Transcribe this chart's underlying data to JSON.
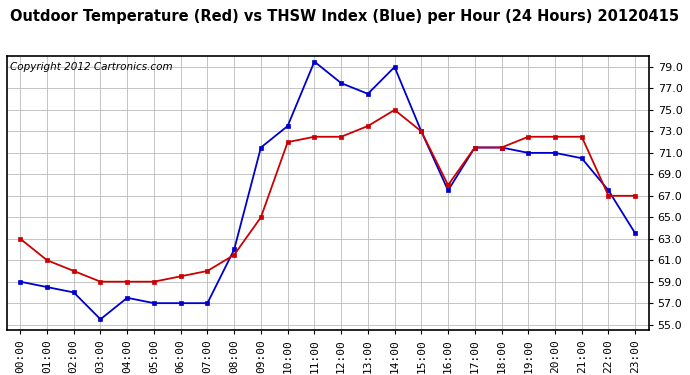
{
  "title": "Outdoor Temperature (Red) vs THSW Index (Blue) per Hour (24 Hours) 20120415",
  "copyright": "Copyright 2012 Cartronics.com",
  "hours": [
    "00:00",
    "01:00",
    "02:00",
    "03:00",
    "04:00",
    "05:00",
    "06:00",
    "07:00",
    "08:00",
    "09:00",
    "10:00",
    "11:00",
    "12:00",
    "13:00",
    "14:00",
    "15:00",
    "16:00",
    "17:00",
    "18:00",
    "19:00",
    "20:00",
    "21:00",
    "22:00",
    "23:00"
  ],
  "red_temp": [
    63.0,
    61.0,
    60.0,
    59.0,
    59.0,
    59.0,
    59.5,
    60.0,
    61.5,
    65.0,
    72.0,
    72.5,
    72.5,
    73.5,
    75.0,
    73.0,
    68.0,
    71.5,
    71.5,
    72.5,
    72.5,
    72.5,
    67.0,
    67.0
  ],
  "blue_thsw": [
    59.0,
    58.5,
    58.0,
    55.5,
    57.5,
    57.0,
    57.0,
    57.0,
    62.0,
    71.5,
    73.5,
    79.5,
    77.5,
    76.5,
    79.0,
    73.0,
    67.5,
    71.5,
    71.5,
    71.0,
    71.0,
    70.5,
    67.5,
    63.5
  ],
  "ylim_min": 54.5,
  "ylim_max": 80.0,
  "yticks": [
    55.0,
    57.0,
    59.0,
    61.0,
    63.0,
    65.0,
    67.0,
    69.0,
    71.0,
    73.0,
    75.0,
    77.0,
    79.0
  ],
  "bg_color": "#ffffff",
  "grid_color": "#bbbbbb",
  "red_color": "#cc0000",
  "blue_color": "#0000cc",
  "title_fontsize": 10.5,
  "copyright_fontsize": 7.5,
  "tick_fontsize": 8,
  "line_width": 1.3,
  "marker_size": 3.5
}
